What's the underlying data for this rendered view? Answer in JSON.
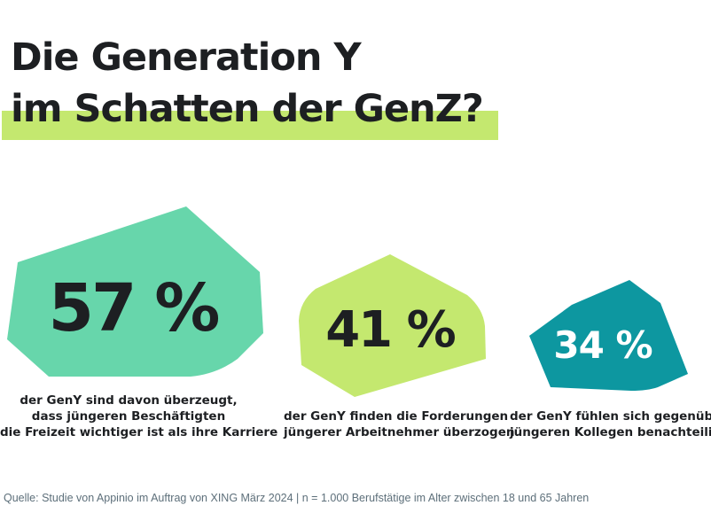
{
  "title": {
    "line1": "Die Generation Y",
    "line2": "im Schatten der GenZ?"
  },
  "colors": {
    "highlight": "#c4e86f",
    "mint": "#67d6ab",
    "lime": "#c4e86f",
    "teal": "#0d97a0",
    "text": "#1d1f22",
    "source": "#5d6f7a"
  },
  "stats": [
    {
      "value": "57 %",
      "caption": [
        "der GenY sind davon überzeugt,",
        "dass jüngeren Beschäftigten",
        "die Freizeit wichtiger ist als ihre Karriere"
      ]
    },
    {
      "value": "41 %",
      "caption": [
        "der GenY finden die Forderungen",
        "jüngerer Arbeitnehmer überzogen"
      ]
    },
    {
      "value": "34 %",
      "caption": [
        "der GenY fühlen sich gegenüber",
        "jüngeren Kollegen benachteiligt"
      ]
    }
  ],
  "source": "Quelle: Studie von Appinio im Auftrag von XING März 2024 | n = 1.000 Berufstätige im Alter zwischen 18 und 65 Jahren"
}
